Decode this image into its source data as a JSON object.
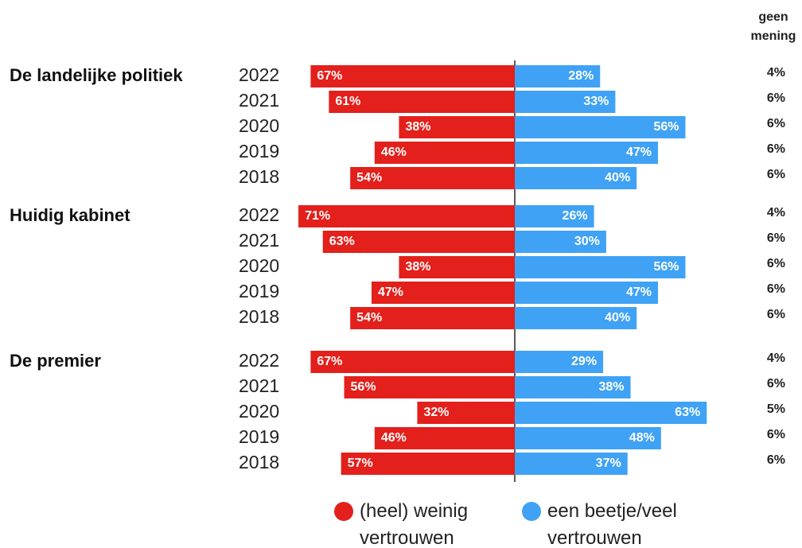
{
  "chart_data": {
    "type": "diverging_bar",
    "series": [
      {
        "name": "(heel) weinig vertrouwen",
        "color": "#e3201b"
      },
      {
        "name": "een beetje/veel vertrouwen",
        "color": "#3fa2f5"
      },
      {
        "name": "geen mening"
      }
    ],
    "groups": [
      {
        "label": "De landelijke politiek",
        "categories": [
          "2022",
          "2021",
          "2020",
          "2019",
          "2018"
        ],
        "values": [
          [
            67,
            61,
            38,
            46,
            54
          ],
          [
            28,
            33,
            56,
            47,
            40
          ],
          [
            4,
            6,
            6,
            6,
            6
          ]
        ],
        "value_labels": [
          [
            "67%",
            "61%",
            "38%",
            "46%",
            "54%"
          ],
          [
            "28%",
            "33%",
            "56%",
            "47%",
            "40%"
          ],
          [
            "4%",
            "6%",
            "6%",
            "6%",
            "6%"
          ]
        ]
      },
      {
        "label": "Huidig kabinet",
        "categories": [
          "2022",
          "2021",
          "2020",
          "2019",
          "2018"
        ],
        "values": [
          [
            71,
            63,
            38,
            47,
            54
          ],
          [
            26,
            30,
            56,
            47,
            40
          ],
          [
            4,
            6,
            6,
            6,
            6
          ]
        ],
        "value_labels": [
          [
            "71%",
            "63%",
            "38%",
            "47%",
            "54%"
          ],
          [
            "26%",
            "30%",
            "56%",
            "47%",
            "40%"
          ],
          [
            "4%",
            "6%",
            "6%",
            "6%",
            "6%"
          ]
        ]
      },
      {
        "label": "De premier",
        "categories": [
          "2022",
          "2021",
          "2020",
          "2019",
          "2018"
        ],
        "values": [
          [
            67,
            56,
            32,
            46,
            57
          ],
          [
            29,
            38,
            63,
            48,
            37
          ],
          [
            4,
            6,
            5,
            6,
            6
          ]
        ],
        "value_labels": [
          [
            "67%",
            "56%",
            "32%",
            "46%",
            "57%"
          ],
          [
            "29%",
            "38%",
            "63%",
            "48%",
            "37%"
          ],
          [
            "4%",
            "6%",
            "5%",
            "6%",
            "6%"
          ]
        ]
      }
    ]
  }
}
